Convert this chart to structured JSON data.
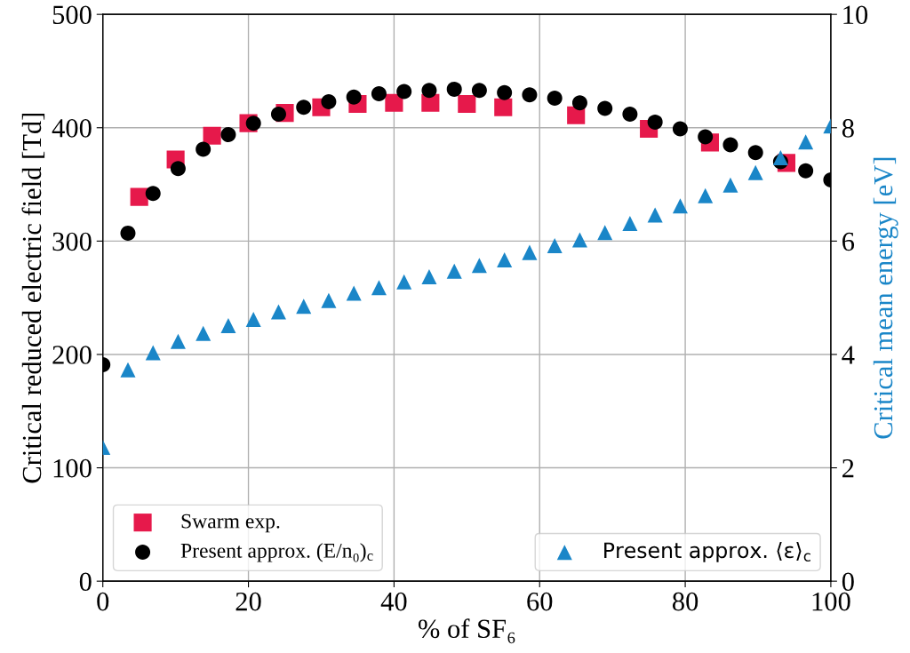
{
  "chart_data": {
    "type": "scatter",
    "xlabel": "% of SF₆",
    "ylabel": "Critical reduced electric field [Td]",
    "y2label": "Critical mean energy [eV]",
    "xlim": [
      0,
      100
    ],
    "xticks": [
      0,
      20,
      40,
      60,
      80,
      100
    ],
    "ylim": [
      0,
      500
    ],
    "yticks": [
      0,
      100,
      200,
      300,
      400,
      500
    ],
    "y2lim": [
      0,
      10
    ],
    "y2ticks": [
      0,
      2,
      4,
      6,
      8,
      10
    ],
    "grid": true,
    "legend": "bottom",
    "series": [
      {
        "name": "Swarm exp.",
        "color": "#e6194b",
        "marker": "square",
        "x": [
          5,
          10,
          15,
          20,
          25,
          30,
          35,
          40,
          45,
          50,
          55,
          65,
          75,
          83.4,
          93.9
        ],
        "values": [
          339,
          372,
          393,
          404,
          413,
          418,
          421,
          422,
          422,
          421,
          418,
          411,
          399,
          387,
          369
        ]
      },
      {
        "name": "Present approx. (E/n₀)$_{c}$",
        "color": "#000000",
        "marker": "circle",
        "x": [
          0,
          3.45,
          6.9,
          10.34,
          13.79,
          17.24,
          20.69,
          24.14,
          27.59,
          31.03,
          34.48,
          37.93,
          41.38,
          44.83,
          48.28,
          51.72,
          55.17,
          58.62,
          62.07,
          65.52,
          68.97,
          72.41,
          75.86,
          79.31,
          82.76,
          86.21,
          89.66,
          93.1,
          96.55,
          100
        ],
        "values": [
          191,
          307,
          342,
          364,
          381,
          394,
          404,
          412,
          418,
          423,
          427,
          430,
          432,
          433,
          434,
          433,
          431,
          429,
          426,
          422,
          417,
          412,
          405,
          399,
          392,
          385,
          378,
          370,
          362,
          354
        ]
      },
      {
        "name": "Present approx. ⟨ε⟩$_{c}$",
        "color": "#1a86c8",
        "marker": "triangle",
        "axis": "y2",
        "x": [
          0,
          3.45,
          6.9,
          10.34,
          13.79,
          17.24,
          20.69,
          24.14,
          27.59,
          31.03,
          34.48,
          37.93,
          41.38,
          44.83,
          48.28,
          51.72,
          55.17,
          58.62,
          62.07,
          65.52,
          68.97,
          72.41,
          75.86,
          79.31,
          82.76,
          86.21,
          89.66,
          93.1,
          96.55,
          100
        ],
        "values": [
          2.36,
          3.73,
          4.03,
          4.23,
          4.37,
          4.51,
          4.62,
          4.75,
          4.85,
          4.95,
          5.08,
          5.18,
          5.28,
          5.37,
          5.47,
          5.57,
          5.67,
          5.8,
          5.92,
          6.02,
          6.15,
          6.31,
          6.46,
          6.62,
          6.8,
          6.99,
          7.21,
          7.47,
          7.75,
          8.03
        ]
      }
    ]
  }
}
